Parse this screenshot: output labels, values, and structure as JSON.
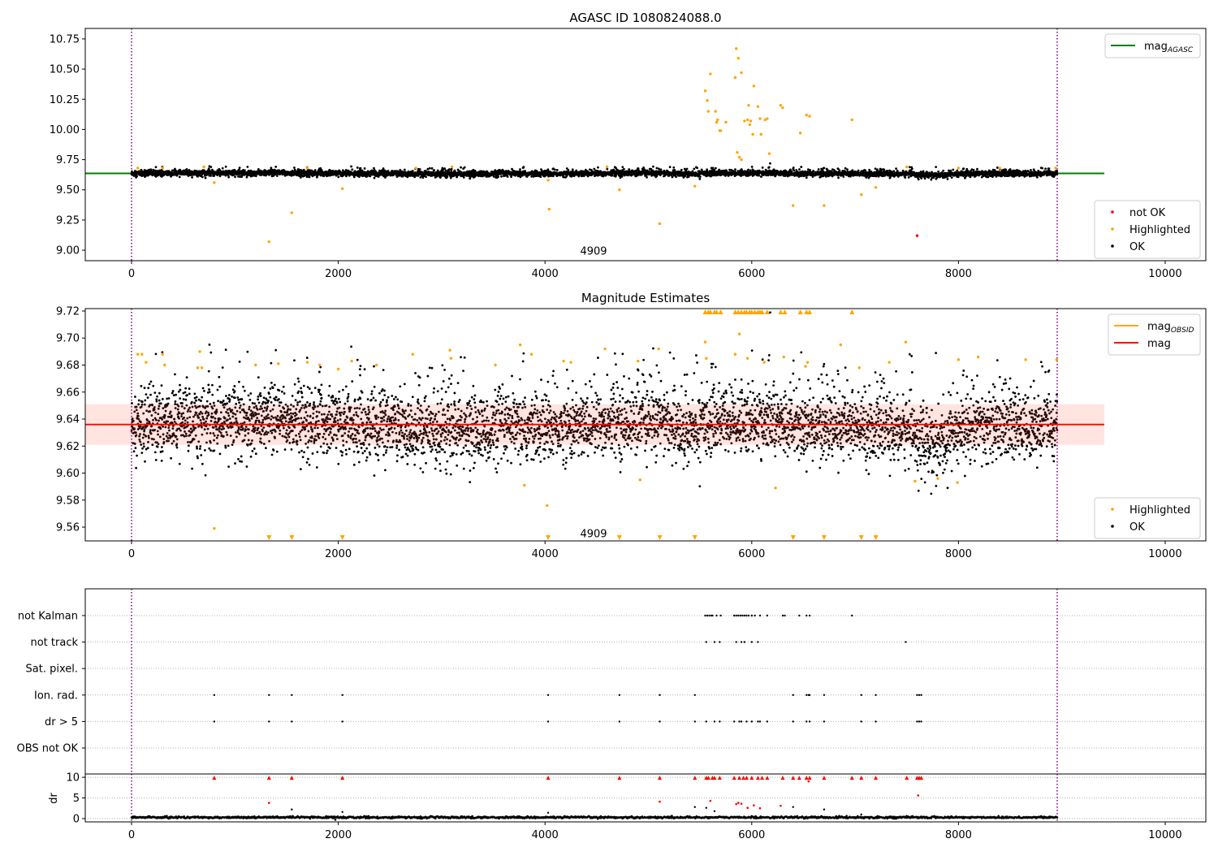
{
  "chart_data": [
    {
      "type": "scatter",
      "title": "AGASC ID 1080824088.0",
      "xlim": [
        -448,
        10393
      ],
      "ylim": [
        8.913,
        10.837
      ],
      "xticks": [
        "0",
        "2000",
        "4000",
        "6000",
        "8000",
        "10000"
      ],
      "xtick_values": [
        0,
        2000,
        4000,
        6000,
        8000,
        10000
      ],
      "yticks": [
        "9.00",
        "9.25",
        "9.50",
        "9.75",
        "10.00",
        "10.25",
        "10.50",
        "10.75"
      ],
      "ytick_values": [
        9.0,
        9.25,
        9.5,
        9.75,
        10.0,
        10.25,
        10.5,
        10.75
      ],
      "vlines": [
        0,
        8955
      ],
      "annotation": {
        "text": "4909",
        "x": 4470,
        "y": 8.99
      },
      "line": {
        "name": "mag",
        "sub": "AGASC",
        "y": 9.636,
        "x": [
          -448,
          9411
        ],
        "color": "#008000"
      },
      "legend_upper": [
        {
          "label": "mag",
          "sub": "AGASC",
          "color": "#008000"
        }
      ],
      "legend_lower": [
        {
          "label": "not OK",
          "color": "#ff0000"
        },
        {
          "label": "Highlighted",
          "color": "#ffa500"
        },
        {
          "label": "OK",
          "color": "#000000"
        }
      ],
      "ok_series": {
        "n": 4909,
        "x_range": [
          0,
          8955
        ],
        "mean": 9.635,
        "std": 0.012
      },
      "highlighted": [
        [
          5550,
          10.32
        ],
        [
          5570,
          10.24
        ],
        [
          5600,
          10.46
        ],
        [
          5580,
          10.15
        ],
        [
          5650,
          10.15
        ],
        [
          5660,
          10.06
        ],
        [
          5670,
          10.08
        ],
        [
          5690,
          9.99
        ],
        [
          5700,
          9.99
        ],
        [
          5750,
          10.06
        ],
        [
          5840,
          10.43
        ],
        [
          5850,
          10.67
        ],
        [
          5870,
          10.59
        ],
        [
          5900,
          10.47
        ],
        [
          5930,
          10.07
        ],
        [
          5960,
          10.08
        ],
        [
          5970,
          10.2
        ],
        [
          5980,
          10.04
        ],
        [
          5990,
          10.07
        ],
        [
          6020,
          10.36
        ],
        [
          6010,
          9.96
        ],
        [
          6060,
          10.19
        ],
        [
          6080,
          10.09
        ],
        [
          6090,
          9.96
        ],
        [
          6130,
          10.08
        ],
        [
          6150,
          10.09
        ],
        [
          6170,
          9.8
        ],
        [
          6280,
          10.2
        ],
        [
          6300,
          10.18
        ],
        [
          6470,
          9.97
        ],
        [
          6530,
          10.12
        ],
        [
          6560,
          10.11
        ],
        [
          5860,
          9.81
        ],
        [
          5880,
          9.77
        ],
        [
          5900,
          9.75
        ],
        [
          6970,
          10.08
        ],
        [
          1330,
          9.07
        ],
        [
          1550,
          9.31
        ],
        [
          2040,
          9.51
        ],
        [
          800,
          9.56
        ],
        [
          4030,
          9.58
        ],
        [
          4040,
          9.34
        ],
        [
          4720,
          9.5
        ],
        [
          5110,
          9.22
        ],
        [
          5450,
          9.53
        ],
        [
          6400,
          9.37
        ],
        [
          6700,
          9.37
        ],
        [
          7060,
          9.46
        ],
        [
          7200,
          9.52
        ],
        [
          7500,
          9.69
        ],
        [
          60,
          9.68
        ],
        [
          300,
          9.68
        ],
        [
          700,
          9.69
        ],
        [
          1700,
          9.68
        ],
        [
          2750,
          9.68
        ],
        [
          3100,
          9.69
        ],
        [
          4600,
          9.69
        ],
        [
          8000,
          9.68
        ],
        [
          8400,
          9.68
        ],
        [
          8940,
          9.68
        ]
      ],
      "not_ok": [
        [
          7600,
          9.12
        ]
      ]
    },
    {
      "type": "scatter",
      "title": "Magnitude Estimates",
      "xlim": [
        -448,
        10393
      ],
      "ylim": [
        9.5498,
        9.7218
      ],
      "xticks": [
        "0",
        "2000",
        "4000",
        "6000",
        "8000",
        "10000"
      ],
      "xtick_values": [
        0,
        2000,
        4000,
        6000,
        8000,
        10000
      ],
      "yticks": [
        "9.56",
        "9.58",
        "9.60",
        "9.62",
        "9.64",
        "9.66",
        "9.68",
        "9.70",
        "9.72"
      ],
      "ytick_values": [
        9.56,
        9.58,
        9.6,
        9.62,
        9.64,
        9.66,
        9.68,
        9.7,
        9.72
      ],
      "vlines": [
        0,
        8955
      ],
      "annotation": {
        "text": "4909",
        "x": 4470,
        "y": 9.555
      },
      "mag_line": {
        "y": 9.636,
        "x": [
          -448,
          9411
        ],
        "color": "#ff0000"
      },
      "mag_band": [
        9.621,
        9.651
      ],
      "legend_upper": [
        {
          "label": "mag",
          "sub": "OBSID",
          "color": "#ffa500"
        },
        {
          "label": "mag",
          "sub": "",
          "color": "#ff0000"
        }
      ],
      "legend_lower": [
        {
          "label": "Highlighted",
          "color": "#ffa500"
        },
        {
          "label": "OK",
          "color": "#000000"
        }
      ],
      "highlighted": [
        [
          60,
          9.688
        ],
        [
          100,
          9.688
        ],
        [
          140,
          9.682
        ],
        [
          300,
          9.688
        ],
        [
          320,
          9.68
        ],
        [
          640,
          9.678
        ],
        [
          660,
          9.69
        ],
        [
          680,
          9.678
        ],
        [
          1200,
          9.68
        ],
        [
          1420,
          9.681
        ],
        [
          1700,
          9.682
        ],
        [
          1820,
          9.68
        ],
        [
          2000,
          9.677
        ],
        [
          2130,
          9.683
        ],
        [
          2370,
          9.68
        ],
        [
          2720,
          9.688
        ],
        [
          3080,
          9.691
        ],
        [
          3090,
          9.685
        ],
        [
          3520,
          9.68
        ],
        [
          3760,
          9.695
        ],
        [
          3870,
          9.688
        ],
        [
          4180,
          9.683
        ],
        [
          4250,
          9.682
        ],
        [
          4580,
          9.692
        ],
        [
          4900,
          9.683
        ],
        [
          5100,
          9.692
        ],
        [
          5550,
          9.697
        ],
        [
          5560,
          9.685
        ],
        [
          5840,
          9.688
        ],
        [
          5880,
          9.703
        ],
        [
          5960,
          9.685
        ],
        [
          6120,
          9.682
        ],
        [
          6310,
          9.686
        ],
        [
          6520,
          9.679
        ],
        [
          6540,
          9.682
        ],
        [
          6860,
          9.695
        ],
        [
          7040,
          9.678
        ],
        [
          7330,
          9.682
        ],
        [
          7490,
          9.697
        ],
        [
          8000,
          9.684
        ],
        [
          8190,
          9.686
        ],
        [
          8650,
          9.684
        ],
        [
          8950,
          9.684
        ],
        [
          800,
          9.559
        ],
        [
          3800,
          9.591
        ],
        [
          4020,
          9.576
        ],
        [
          4920,
          9.595
        ],
        [
          6230,
          9.589
        ],
        [
          7580,
          9.594
        ],
        [
          7800,
          9.596
        ],
        [
          7990,
          9.593
        ]
      ],
      "clipped_high_x": [
        5550,
        5580,
        5600,
        5640,
        5660,
        5700,
        5840,
        5870,
        5900,
        5930,
        5950,
        5980,
        6000,
        6030,
        6060,
        6080,
        6100,
        6150,
        6280,
        6320,
        6470,
        6530,
        6560,
        6970
      ],
      "clipped_low_x": [
        1330,
        1550,
        2040,
        4030,
        4720,
        5110,
        5450,
        6400,
        6700,
        7060,
        7200
      ]
    },
    {
      "type": "scatter",
      "title": "",
      "xlim": [
        -448,
        10393
      ],
      "categories": [
        "OBS not OK",
        "dr > 5",
        "Ion. rad.",
        "Sat. pixel.",
        "not track",
        "not Kalman"
      ],
      "flags": {
        "not Kalman": [
          5550,
          5570,
          5590,
          5610,
          5620,
          5660,
          5700,
          5830,
          5850,
          5870,
          5890,
          5910,
          5930,
          5950,
          5970,
          6000,
          6030,
          6080,
          6150,
          6300,
          6320,
          6460,
          6530,
          6560,
          6970
        ],
        "not track": [
          5560,
          5640,
          5690,
          5850,
          5900,
          5930,
          6000,
          6060,
          7490
        ],
        "Sat. pixel.": [],
        "Ion. rad.": [
          800,
          1330,
          1550,
          2040,
          4030,
          4720,
          5110,
          5450,
          6400,
          6530,
          6550,
          6560,
          6700,
          7060,
          7200,
          7600,
          7620,
          7640
        ],
        "dr > 5": [
          800,
          1330,
          1550,
          2040,
          4030,
          4720,
          5110,
          5450,
          5560,
          5640,
          5690,
          5830,
          5880,
          5900,
          5950,
          6000,
          6060,
          6080,
          6150,
          6400,
          6530,
          6560,
          6700,
          7060,
          7200,
          7600,
          7620,
          7640
        ],
        "OBS not OK": []
      },
      "dr": {
        "ylabel": "dr",
        "ylim": [
          -0.8,
          10.8
        ],
        "yticks": [
          "0",
          "5",
          "10"
        ],
        "ytick_values": [
          0,
          5,
          10
        ],
        "xticks": [
          "0",
          "2000",
          "4000",
          "6000",
          "8000",
          "10000"
        ],
        "xtick_values": [
          0,
          2000,
          4000,
          6000,
          8000,
          10000
        ],
        "ok_level": 0.3,
        "red_points": [
          [
            800,
            10
          ],
          [
            1330,
            10
          ],
          [
            1330,
            3.8
          ],
          [
            1550,
            10
          ],
          [
            2040,
            10
          ],
          [
            4030,
            10
          ],
          [
            4720,
            10
          ],
          [
            5110,
            10
          ],
          [
            5110,
            4.1
          ],
          [
            5450,
            10
          ],
          [
            5560,
            10
          ],
          [
            5580,
            10
          ],
          [
            5600,
            4.3
          ],
          [
            5620,
            10
          ],
          [
            5640,
            10
          ],
          [
            5690,
            10
          ],
          [
            5830,
            10
          ],
          [
            5850,
            3.5
          ],
          [
            5870,
            3.8
          ],
          [
            5880,
            10
          ],
          [
            5900,
            3.6
          ],
          [
            5920,
            10
          ],
          [
            5950,
            10
          ],
          [
            5960,
            2.6
          ],
          [
            6000,
            10
          ],
          [
            6020,
            3.2
          ],
          [
            6060,
            10
          ],
          [
            6080,
            2.5
          ],
          [
            6100,
            10
          ],
          [
            6150,
            10
          ],
          [
            6280,
            3.1
          ],
          [
            6300,
            10
          ],
          [
            6400,
            10
          ],
          [
            6460,
            10
          ],
          [
            6530,
            10
          ],
          [
            6550,
            9.0
          ],
          [
            6560,
            10
          ],
          [
            6700,
            10
          ],
          [
            6970,
            10
          ],
          [
            7060,
            10
          ],
          [
            7200,
            10
          ],
          [
            7500,
            10
          ],
          [
            7600,
            10
          ],
          [
            7610,
            5.6
          ],
          [
            7620,
            10
          ],
          [
            7640,
            10
          ]
        ],
        "black_outliers": [
          [
            1550,
            2.2
          ],
          [
            2040,
            1.6
          ],
          [
            4030,
            1.4
          ],
          [
            5450,
            2.8
          ],
          [
            5560,
            2.6
          ],
          [
            5640,
            1.8
          ],
          [
            6400,
            2.8
          ],
          [
            6700,
            2.2
          ],
          [
            7060,
            1.0
          ]
        ]
      },
      "vlines": [
        0,
        8955
      ]
    }
  ]
}
